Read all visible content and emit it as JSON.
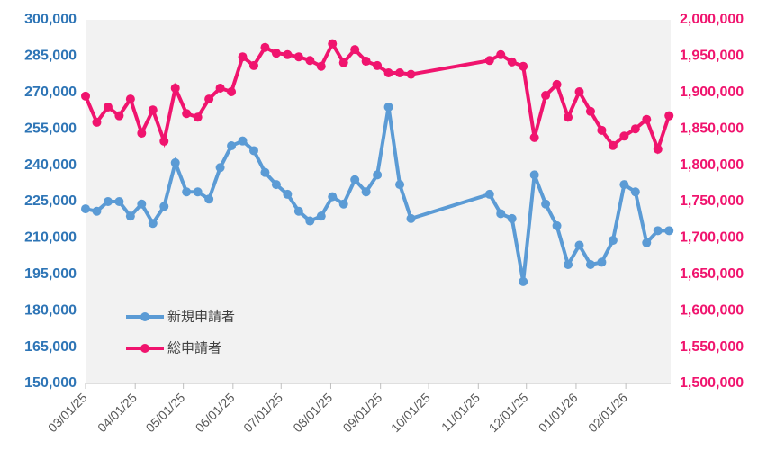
{
  "chart_data": {
    "type": "line",
    "x": [
      "2025-03-01",
      "2025-03-08",
      "2025-03-15",
      "2025-03-22",
      "2025-03-29",
      "2025-04-05",
      "2025-04-12",
      "2025-04-19",
      "2025-04-26",
      "2025-05-03",
      "2025-05-10",
      "2025-05-17",
      "2025-05-24",
      "2025-05-31",
      "2025-06-07",
      "2025-06-14",
      "2025-06-21",
      "2025-06-28",
      "2025-07-05",
      "2025-07-12",
      "2025-07-19",
      "2025-07-26",
      "2025-08-02",
      "2025-08-09",
      "2025-08-16",
      "2025-08-23",
      "2025-08-30",
      "2025-09-06",
      "2025-09-13",
      "2025-09-20",
      "2025-11-08",
      "2025-11-15",
      "2025-11-22",
      "2025-11-29",
      "2025-12-06",
      "2025-12-13",
      "2025-12-20",
      "2025-12-27",
      "2026-01-03",
      "2026-01-10",
      "2026-01-17",
      "2026-01-24",
      "2026-01-31",
      "2026-02-07",
      "2026-02-14",
      "2026-02-21",
      "2026-02-28"
    ],
    "series": [
      {
        "name": "新規申請者",
        "color": "#5b9bd5",
        "axis": "y",
        "values": [
          222000,
          221000,
          225000,
          225000,
          219000,
          224000,
          216000,
          223000,
          241000,
          229000,
          229000,
          226000,
          239000,
          248000,
          250000,
          246000,
          237000,
          232000,
          228000,
          221000,
          217000,
          219000,
          227000,
          224000,
          234000,
          229000,
          236000,
          264000,
          232000,
          218000,
          228000,
          220000,
          218000,
          192000,
          236000,
          224000,
          215000,
          199000,
          207000,
          199000,
          200000,
          209000,
          232000,
          229000,
          208000,
          213000,
          213000
        ]
      },
      {
        "name": "総申請者",
        "color": "#f0146e",
        "axis": "y2",
        "values": [
          1895000,
          1859000,
          1880000,
          1868000,
          1891000,
          1844000,
          1876000,
          1833000,
          1906000,
          1871000,
          1866000,
          1891000,
          1906000,
          1901000,
          1949000,
          1937000,
          1962000,
          1954000,
          1952000,
          1949000,
          1944000,
          1936000,
          1967000,
          1941000,
          1959000,
          1943000,
          1937000,
          1927000,
          1927000,
          1925000,
          1944000,
          1952000,
          1942000,
          1936000,
          1838000,
          1896000,
          1911000,
          1866000,
          1901000,
          1874000,
          1848000,
          1827000,
          1840000,
          1850000,
          1863000,
          1822000,
          1868000
        ]
      }
    ],
    "xlim": [
      "2025-03-01",
      "2026-03-01"
    ],
    "xticks": [
      {
        "value": "2025-03-01",
        "label": "03/01/25"
      },
      {
        "value": "2025-04-01",
        "label": "04/01/25"
      },
      {
        "value": "2025-05-01",
        "label": "05/01/25"
      },
      {
        "value": "2025-06-01",
        "label": "06/01/25"
      },
      {
        "value": "2025-07-01",
        "label": "07/01/25"
      },
      {
        "value": "2025-08-01",
        "label": "08/01/25"
      },
      {
        "value": "2025-09-01",
        "label": "09/01/25"
      },
      {
        "value": "2025-10-01",
        "label": "10/01/25"
      },
      {
        "value": "2025-11-01",
        "label": "11/01/25"
      },
      {
        "value": "2025-12-01",
        "label": "12/01/25"
      },
      {
        "value": "2026-01-01",
        "label": "01/01/26"
      },
      {
        "value": "2026-02-01",
        "label": "02/01/26"
      }
    ],
    "ylim": [
      150000,
      300000
    ],
    "yticks": [
      {
        "value": 150000,
        "label": "150,000"
      },
      {
        "value": 165000,
        "label": "165,000"
      },
      {
        "value": 180000,
        "label": "180,000"
      },
      {
        "value": 195000,
        "label": "195,000"
      },
      {
        "value": 210000,
        "label": "210,000"
      },
      {
        "value": 225000,
        "label": "225,000"
      },
      {
        "value": 240000,
        "label": "240,000"
      },
      {
        "value": 255000,
        "label": "255,000"
      },
      {
        "value": 270000,
        "label": "270,000"
      },
      {
        "value": 285000,
        "label": "285,000"
      },
      {
        "value": 300000,
        "label": "300,000"
      }
    ],
    "y2lim": [
      1500000,
      2000000
    ],
    "y2ticks": [
      {
        "value": 1500000,
        "label": "1,500,000"
      },
      {
        "value": 1550000,
        "label": "1,550,000"
      },
      {
        "value": 1600000,
        "label": "1,600,000"
      },
      {
        "value": 1650000,
        "label": "1,650,000"
      },
      {
        "value": 1700000,
        "label": "1,700,000"
      },
      {
        "value": 1750000,
        "label": "1,750,000"
      },
      {
        "value": 1800000,
        "label": "1,800,000"
      },
      {
        "value": 1850000,
        "label": "1,850,000"
      },
      {
        "value": 1900000,
        "label": "1,900,000"
      },
      {
        "value": 1950000,
        "label": "1,950,000"
      },
      {
        "value": 2000000,
        "label": "2,000,000"
      }
    ],
    "y_color": "#2e75b6",
    "y2_color": "#f0146e",
    "grid": false,
    "legend": "lower left"
  }
}
